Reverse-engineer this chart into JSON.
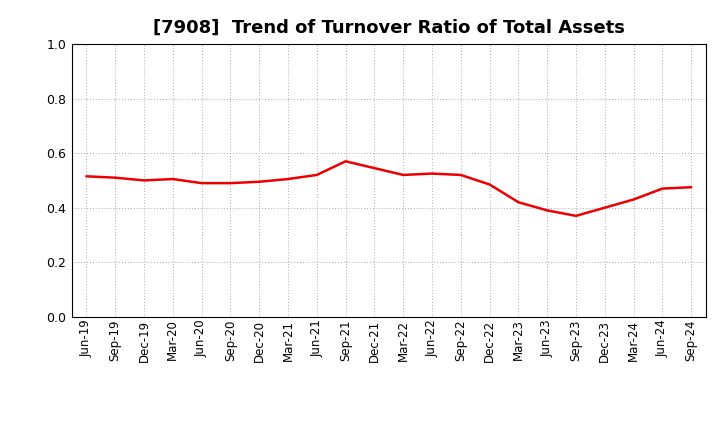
{
  "title": "[7908]  Trend of Turnover Ratio of Total Assets",
  "line_color": "#EE0000",
  "line_width": 1.8,
  "background_color": "#FFFFFF",
  "grid_color": "#AAAAAA",
  "ylim": [
    0.0,
    1.0
  ],
  "yticks": [
    0.0,
    0.2,
    0.4,
    0.6,
    0.8,
    1.0
  ],
  "labels": [
    "Jun-19",
    "Sep-19",
    "Dec-19",
    "Mar-20",
    "Jun-20",
    "Sep-20",
    "Dec-20",
    "Mar-21",
    "Jun-21",
    "Sep-21",
    "Dec-21",
    "Mar-22",
    "Jun-22",
    "Sep-22",
    "Dec-22",
    "Mar-23",
    "Jun-23",
    "Sep-23",
    "Dec-23",
    "Mar-24",
    "Jun-24",
    "Sep-24"
  ],
  "values": [
    0.515,
    0.51,
    0.5,
    0.505,
    0.49,
    0.49,
    0.495,
    0.505,
    0.52,
    0.57,
    0.545,
    0.52,
    0.525,
    0.52,
    0.485,
    0.42,
    0.39,
    0.37,
    0.4,
    0.43,
    0.47,
    0.475
  ],
  "title_fontsize": 13,
  "tick_fontsize": 8.5,
  "ytick_fontsize": 9
}
